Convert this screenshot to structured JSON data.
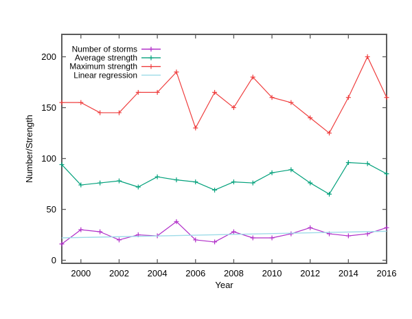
{
  "figure": {
    "background": "#ffffff",
    "border_color": "#5a5a5a",
    "text_color": "#000000"
  },
  "chart_data": {
    "type": "line",
    "title": "",
    "xlabel": "Year",
    "ylabel": "Number/Strength",
    "grid": false,
    "legend_position": "top-left-inside",
    "xlim": [
      1999,
      2016
    ],
    "ylim": [
      -3,
      222
    ],
    "xticks": [
      2000,
      2002,
      2004,
      2006,
      2008,
      2010,
      2012,
      2014,
      2016
    ],
    "yticks": [
      0,
      50,
      100,
      150,
      200
    ],
    "x": [
      1999,
      2000,
      2001,
      2002,
      2003,
      2004,
      2005,
      2006,
      2007,
      2008,
      2009,
      2010,
      2011,
      2012,
      2013,
      2014,
      2015,
      2016
    ],
    "series": [
      {
        "name": "Number of storms",
        "color": "#b02cc8",
        "marker": "plus",
        "values": [
          16,
          30,
          28,
          20,
          25,
          24,
          38,
          20,
          18,
          28,
          22,
          22,
          26,
          32,
          26,
          24,
          26,
          32
        ]
      },
      {
        "name": "Average strength",
        "color": "#00a07a",
        "marker": "plus",
        "values": [
          94,
          74,
          76,
          78,
          72,
          82,
          79,
          77,
          69,
          77,
          76,
          86,
          89,
          76,
          65,
          96,
          95,
          85
        ]
      },
      {
        "name": "Maximum strength",
        "color": "#ef3e3e",
        "marker": "plus",
        "values": [
          155,
          155,
          145,
          145,
          165,
          165,
          185,
          130,
          165,
          150,
          180,
          160,
          155,
          140,
          125,
          160,
          200,
          160
        ]
      },
      {
        "name": "Linear regression",
        "color": "#9edbe8",
        "marker": "none",
        "line": {
          "x": [
            1999,
            2016
          ],
          "y": [
            22,
            28.5
          ]
        }
      }
    ]
  }
}
